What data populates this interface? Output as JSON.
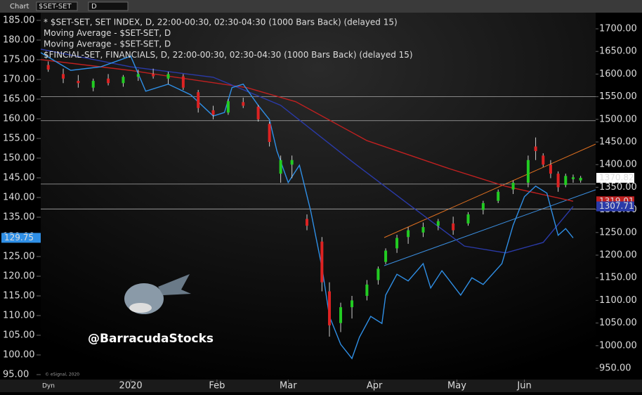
{
  "toolbar": {
    "window": "Chart",
    "symbol": "$SET-SET",
    "interval": "D"
  },
  "chart_data": {
    "type": "candlestick",
    "xlim": [
      -24,
      124
    ],
    "xticks": [
      {
        "value": 0,
        "label": "2020"
      },
      {
        "value": 23,
        "label": "Feb"
      },
      {
        "value": 42,
        "label": "Mar"
      },
      {
        "value": 65,
        "label": "Apr"
      },
      {
        "value": 87,
        "label": "May"
      },
      {
        "value": 105,
        "label": "Jun"
      }
    ],
    "ylim": [
      93.75,
      186.96
    ],
    "yticks": [
      {
        "value": 185,
        "label": "185.00"
      },
      {
        "value": 180,
        "label": "180.00"
      },
      {
        "value": 175,
        "label": "175.00"
      },
      {
        "value": 170,
        "label": "170.00"
      },
      {
        "value": 165,
        "label": "165.00"
      },
      {
        "value": 160,
        "label": "160.00"
      },
      {
        "value": 155,
        "label": "155.00"
      },
      {
        "value": 150,
        "label": "150.00"
      },
      {
        "value": 145,
        "label": "145.00"
      },
      {
        "value": 140,
        "label": "140.00"
      },
      {
        "value": 135,
        "label": "135.00"
      },
      {
        "value": 130,
        "label": "130.00"
      },
      {
        "value": 125,
        "label": "125.00"
      },
      {
        "value": 120,
        "label": "120.00"
      },
      {
        "value": 115,
        "label": "115.00"
      },
      {
        "value": 110,
        "label": "110.00"
      },
      {
        "value": 105,
        "label": "105.00"
      },
      {
        "value": 100,
        "label": "100.00"
      },
      {
        "value": 95,
        "label": "95.00"
      }
    ],
    "y2lim": [
      925.2,
      1735.7
    ],
    "y2ticks": [
      {
        "value": 1700,
        "label": "1700.00"
      },
      {
        "value": 1650,
        "label": "1650.00"
      },
      {
        "value": 1600,
        "label": "1600.00"
      },
      {
        "value": 1550,
        "label": "1550.00"
      },
      {
        "value": 1500,
        "label": "1500.00"
      },
      {
        "value": 1450,
        "label": "1450.00"
      },
      {
        "value": 1400,
        "label": "1400.00"
      },
      {
        "value": 1350,
        "label": "1350.00"
      },
      {
        "value": 1300,
        "label": "1300.00"
      },
      {
        "value": 1250,
        "label": "1250.00"
      },
      {
        "value": 1200,
        "label": "1200.00"
      },
      {
        "value": 1150,
        "label": "1150.00"
      },
      {
        "value": 1100,
        "label": "1100.00"
      },
      {
        "value": 1050,
        "label": "1050.00"
      },
      {
        "value": 1000,
        "label": "1000.00"
      },
      {
        "value": 950,
        "label": "950.00"
      }
    ],
    "hlines": [
      1550,
      1497,
      1357,
      1302
    ],
    "candles": {
      "name": "* $SET-SET, SET INDEX, D, 22:00-00:30, 02:30-04:30 (1000 Bars Back) (delayed 15)",
      "axis": "y2",
      "color": "#dddddd",
      "up_color": "#22cc22",
      "down_color": "#dd2222",
      "x": [
        -22,
        -18,
        -14,
        -10,
        -6,
        -2,
        2,
        6,
        10,
        14,
        18,
        22,
        26,
        30,
        34,
        37,
        40,
        43,
        47,
        51,
        53,
        56,
        59,
        63,
        66,
        68,
        71,
        74,
        78,
        82,
        86,
        90,
        94,
        98,
        102,
        106,
        108,
        110,
        112,
        114,
        116,
        118,
        120
      ],
      "open": [
        1620,
        1600,
        1585,
        1570,
        1590,
        1580,
        1594,
        1600,
        1590,
        1595,
        1560,
        1520,
        1515,
        1538,
        1528,
        1490,
        1380,
        1400,
        1280,
        1230,
        1120,
        1050,
        1085,
        1110,
        1145,
        1185,
        1215,
        1240,
        1250,
        1265,
        1270,
        1270,
        1300,
        1320,
        1345,
        1360,
        1440,
        1420,
        1400,
        1380,
        1355,
        1368,
        1365
      ],
      "high": [
        1628,
        1612,
        1598,
        1590,
        1600,
        1598,
        1610,
        1612,
        1605,
        1600,
        1565,
        1530,
        1545,
        1548,
        1532,
        1495,
        1420,
        1420,
        1290,
        1240,
        1140,
        1095,
        1110,
        1145,
        1175,
        1215,
        1245,
        1262,
        1272,
        1280,
        1285,
        1295,
        1320,
        1345,
        1365,
        1420,
        1460,
        1425,
        1410,
        1385,
        1380,
        1378,
        1375
      ],
      "low": [
        1605,
        1580,
        1570,
        1562,
        1575,
        1572,
        1585,
        1590,
        1578,
        1565,
        1515,
        1500,
        1510,
        1525,
        1495,
        1440,
        1360,
        1370,
        1255,
        1120,
        1020,
        1030,
        1060,
        1100,
        1135,
        1180,
        1205,
        1225,
        1240,
        1255,
        1245,
        1265,
        1290,
        1315,
        1335,
        1350,
        1410,
        1395,
        1370,
        1340,
        1350,
        1360,
        1360
      ],
      "close": [
        1610,
        1590,
        1580,
        1585,
        1580,
        1594,
        1600,
        1595,
        1600,
        1570,
        1525,
        1510,
        1540,
        1530,
        1500,
        1450,
        1410,
        1410,
        1265,
        1140,
        1045,
        1085,
        1100,
        1135,
        1170,
        1210,
        1238,
        1255,
        1262,
        1275,
        1255,
        1290,
        1315,
        1340,
        1360,
        1410,
        1430,
        1400,
        1380,
        1350,
        1375,
        1372,
        1370.82
      ]
    },
    "series": [
      {
        "name": "Moving Average - $SET-SET, D",
        "axis": "y2",
        "color": "#c02020",
        "x": [
          -24,
          0,
          12,
          31,
          44,
          63,
          85,
          100,
          118
        ],
        "values": [
          1632,
          1608,
          1593,
          1570,
          1539,
          1453,
          1391,
          1352,
          1319.01
        ]
      },
      {
        "name": "Moving Average - $SET-SET, D",
        "axis": "y2",
        "color": "#2a3aa8",
        "x": [
          -24,
          0,
          22,
          40,
          59,
          74,
          89,
          100,
          110,
          118
        ],
        "values": [
          1655,
          1616,
          1593,
          1531,
          1407,
          1313,
          1220,
          1205,
          1228,
          1307.71
        ]
      },
      {
        "name": "$FINCIAL-SET, FINANCIALS, D, 22:00-00:30, 02:30-04:30 (1000 Bars Back) (delayed 15)",
        "axis": "y",
        "color": "#2f8fe6",
        "x": [
          -24,
          -16,
          -8,
          0,
          4,
          10,
          16,
          22,
          25,
          27,
          30,
          34,
          37,
          39,
          42,
          45,
          48,
          51,
          53,
          56,
          59,
          61,
          64,
          67,
          68,
          71,
          74,
          78,
          80,
          83,
          88,
          91,
          94,
          99,
          102,
          105,
          108,
          111,
          114,
          116,
          118
        ],
        "values": [
          176.8,
          172.3,
          173.2,
          175.9,
          167,
          168.8,
          166.1,
          160.7,
          161.6,
          167.9,
          168.8,
          163.4,
          159.8,
          151.8,
          143.8,
          148.2,
          136.6,
          122.3,
          109.8,
          102.7,
          99.1,
          104.5,
          109.8,
          108,
          115.2,
          120.5,
          118.8,
          123.2,
          117,
          121.4,
          115.2,
          119.6,
          117.9,
          123.2,
          133,
          140.2,
          142.9,
          141.1,
          130.4,
          132.1,
          129.75
        ]
      }
    ],
    "watermark": "@BarracudaStocks",
    "copyright": "© eSignal, 2020",
    "mode": "Dyn"
  }
}
